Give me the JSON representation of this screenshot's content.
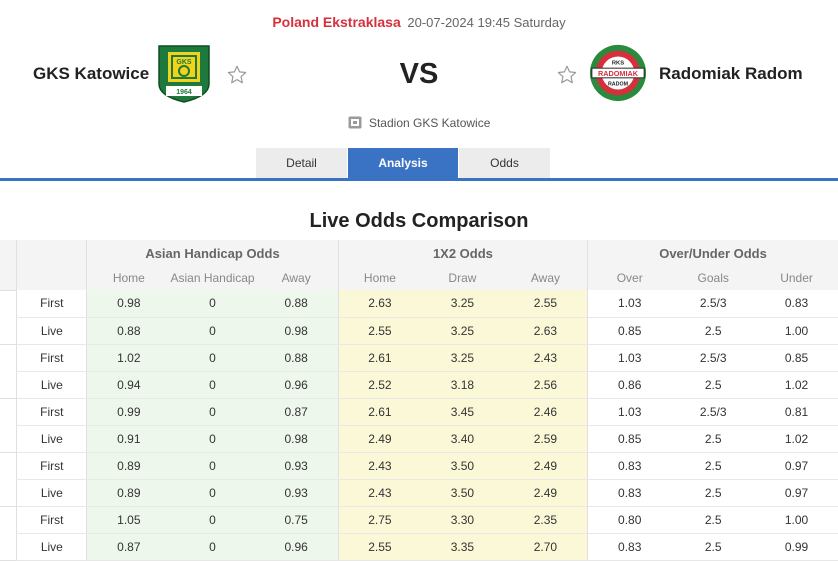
{
  "match": {
    "league": "Poland Ekstraklasa",
    "datetime": "20-07-2024 19:45 Saturday",
    "home_team": "GKS Katowice",
    "away_team": "Radomiak Radom",
    "vs_label": "VS",
    "venue": "Stadion GKS Katowice",
    "home_logo_year": "1964",
    "away_logo_text": "RADOMIAK",
    "away_logo_top": "RKS",
    "away_logo_bottom": "RADOM"
  },
  "tabs": [
    {
      "label": "Detail",
      "active": false
    },
    {
      "label": "Analysis",
      "active": true
    },
    {
      "label": "Odds",
      "active": false
    }
  ],
  "section_title": "Live Odds Comparison",
  "table": {
    "groups": [
      "Asian Handicap Odds",
      "1X2 Odds",
      "Over/Under Odds"
    ],
    "subheaders": [
      "Home",
      "Asian Handicap",
      "Away",
      "Home",
      "Draw",
      "Away",
      "Over",
      "Goals",
      "Under"
    ],
    "rows": [
      {
        "type": "First",
        "ah": [
          "0.98",
          "0",
          "0.88"
        ],
        "x12": [
          "2.63",
          "3.25",
          "2.55"
        ],
        "ou": [
          "1.03",
          "2.5/3",
          "0.83"
        ]
      },
      {
        "type": "Live",
        "ah": [
          "0.88",
          "0",
          "0.98"
        ],
        "x12": [
          "2.55",
          "3.25",
          "2.63"
        ],
        "ou": [
          "0.85",
          "2.5",
          "1.00"
        ]
      },
      {
        "type": "First",
        "ah": [
          "1.02",
          "0",
          "0.88"
        ],
        "x12": [
          "2.61",
          "3.25",
          "2.43"
        ],
        "ou": [
          "1.03",
          "2.5/3",
          "0.85"
        ]
      },
      {
        "type": "Live",
        "ah": [
          "0.94",
          "0",
          "0.96"
        ],
        "x12": [
          "2.52",
          "3.18",
          "2.56"
        ],
        "ou": [
          "0.86",
          "2.5",
          "1.02"
        ]
      },
      {
        "type": "First",
        "ah": [
          "0.99",
          "0",
          "0.87"
        ],
        "x12": [
          "2.61",
          "3.45",
          "2.46"
        ],
        "ou": [
          "1.03",
          "2.5/3",
          "0.81"
        ]
      },
      {
        "type": "Live",
        "ah": [
          "0.91",
          "0",
          "0.98"
        ],
        "x12": [
          "2.49",
          "3.40",
          "2.59"
        ],
        "ou": [
          "0.85",
          "2.5",
          "1.02"
        ]
      },
      {
        "type": "First",
        "ah": [
          "0.89",
          "0",
          "0.93"
        ],
        "x12": [
          "2.43",
          "3.50",
          "2.49"
        ],
        "ou": [
          "0.83",
          "2.5",
          "0.97"
        ]
      },
      {
        "type": "Live",
        "ah": [
          "0.89",
          "0",
          "0.93"
        ],
        "x12": [
          "2.43",
          "3.50",
          "2.49"
        ],
        "ou": [
          "0.83",
          "2.5",
          "0.97"
        ]
      },
      {
        "type": "First",
        "ah": [
          "1.05",
          "0",
          "0.75"
        ],
        "x12": [
          "2.75",
          "3.30",
          "2.35"
        ],
        "ou": [
          "0.80",
          "2.5",
          "1.00"
        ]
      },
      {
        "type": "Live",
        "ah": [
          "0.87",
          "0",
          "0.96"
        ],
        "x12": [
          "2.55",
          "3.35",
          "2.70"
        ],
        "ou": [
          "0.83",
          "2.5",
          "0.99"
        ]
      }
    ]
  },
  "colors": {
    "accent": "#3b73c4",
    "league": "#d6303c",
    "ah_bg": "#eef7ec",
    "x12_bg": "#fbf8d8"
  },
  "icons": {
    "star": "star-outline-icon",
    "venue": "stadium-icon"
  }
}
